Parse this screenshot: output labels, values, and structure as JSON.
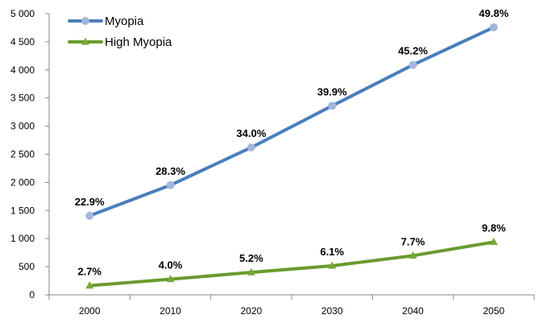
{
  "chart_data": {
    "type": "line",
    "categories": [
      "2000",
      "2010",
      "2020",
      "2030",
      "2040",
      "2050"
    ],
    "ylim": [
      0,
      5000
    ],
    "yticks": [
      0,
      500,
      1000,
      1500,
      2000,
      2500,
      3000,
      3500,
      4000,
      4500,
      5000
    ],
    "ytick_labels": [
      "0",
      "500",
      "1 000",
      "1 500",
      "2 000",
      "2 500",
      "3 000",
      "3 500",
      "4 000",
      "4 500",
      "5 000"
    ],
    "grid": false,
    "legend_position": "top-left",
    "series": [
      {
        "name": "Myopia",
        "color": "#4a7ebb",
        "marker_color": "#a4b6dd",
        "marker": "circle",
        "values": [
          1406,
          1950,
          2620,
          3361,
          4089,
          4758
        ],
        "labels": [
          "22.9%",
          "28.3%",
          "34.0%",
          "39.9%",
          "45.2%",
          "49.8%"
        ]
      },
      {
        "name": "High Myopia",
        "color": "#6a9b2e",
        "marker_color": "#78a83a",
        "marker": "triangle",
        "values": [
          163,
          277,
          399,
          516,
          696,
          938
        ],
        "labels": [
          "2.7%",
          "4.0%",
          "5.2%",
          "6.1%",
          "7.7%",
          "9.8%"
        ]
      }
    ]
  }
}
